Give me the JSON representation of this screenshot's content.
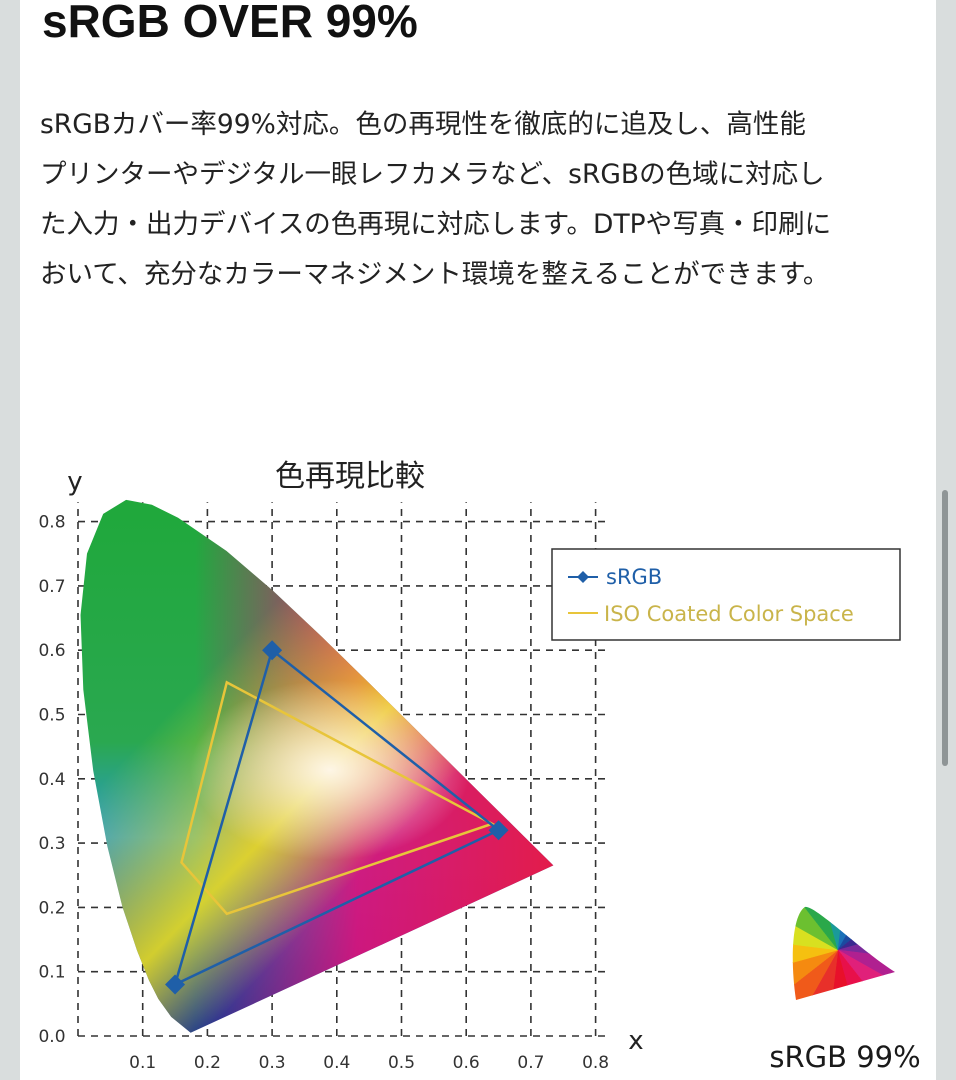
{
  "heading": "sRGB OVER 99%",
  "paragraph_lines": [
    "sRGBカバー率99%対応。色の再現性を徹底的に追及し、高性能",
    "プリンターやデジタル一眼レフカメラなど、sRGBの色域に対応し",
    "た入力・出力デバイスの色再現に対応します。DTPや写真・印刷に",
    "おいて、充分なカラーマネジメント環境を整えることができます。"
  ],
  "chart_data": {
    "type": "scatter",
    "title": "色再現比較",
    "xlabel": "x",
    "ylabel": "y",
    "xlim": [
      0,
      0.8
    ],
    "ylim": [
      0,
      0.8
    ],
    "x_ticks": [
      "0.1",
      "0.2",
      "0.3",
      "0.4",
      "0.5",
      "0.6",
      "0.7",
      "0.8"
    ],
    "y_ticks": [
      "0.0",
      "0.1",
      "0.2",
      "0.3",
      "0.4",
      "0.5",
      "0.6",
      "0.7",
      "0.8"
    ],
    "grid": true,
    "legend_position": "top-right",
    "series": [
      {
        "name": "sRGB",
        "color": "#1f5fa8",
        "marker": "diamond",
        "closed": true,
        "points": [
          [
            0.65,
            0.32
          ],
          [
            0.3,
            0.6
          ],
          [
            0.15,
            0.08
          ]
        ]
      },
      {
        "name": "ISO Coated Color Space",
        "color": "#e8c53a",
        "marker": "none",
        "closed": true,
        "points": [
          [
            0.64,
            0.33
          ],
          [
            0.23,
            0.55
          ],
          [
            0.16,
            0.27
          ],
          [
            0.23,
            0.19
          ]
        ]
      }
    ],
    "spectral_locus": [
      [
        0.1741,
        0.005
      ],
      [
        0.144,
        0.0297
      ],
      [
        0.1241,
        0.0578
      ],
      [
        0.1096,
        0.0868
      ],
      [
        0.0913,
        0.1327
      ],
      [
        0.0687,
        0.2007
      ],
      [
        0.0454,
        0.295
      ],
      [
        0.0235,
        0.4127
      ],
      [
        0.0082,
        0.5384
      ],
      [
        0.0039,
        0.6548
      ],
      [
        0.0139,
        0.7502
      ],
      [
        0.0389,
        0.812
      ],
      [
        0.0743,
        0.8338
      ],
      [
        0.1142,
        0.8262
      ],
      [
        0.1547,
        0.8059
      ],
      [
        0.2296,
        0.7543
      ],
      [
        0.3016,
        0.6923
      ],
      [
        0.3731,
        0.6245
      ],
      [
        0.4441,
        0.5547
      ],
      [
        0.5125,
        0.4866
      ],
      [
        0.5752,
        0.4242
      ],
      [
        0.627,
        0.3725
      ],
      [
        0.6915,
        0.3083
      ],
      [
        0.7347,
        0.2653
      ]
    ]
  },
  "badge": {
    "label": "sRGB 99%"
  }
}
